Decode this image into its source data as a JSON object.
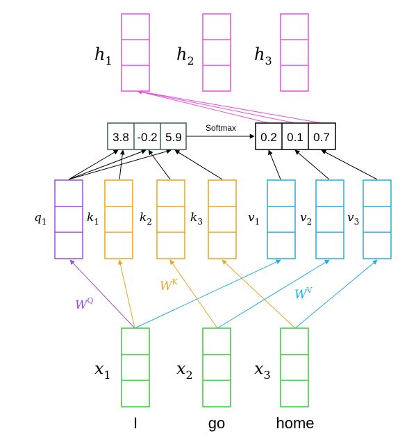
{
  "words": [
    "I",
    "go",
    "home"
  ],
  "x_labels": [
    {
      "base": "x",
      "sub": "1"
    },
    {
      "base": "x",
      "sub": "2"
    },
    {
      "base": "x",
      "sub": "3"
    }
  ],
  "h_labels": [
    {
      "base": "h",
      "sub": "1"
    },
    {
      "base": "h",
      "sub": "2"
    },
    {
      "base": "h",
      "sub": "3"
    }
  ],
  "q_labels": [
    {
      "base": "q",
      "sub": "1"
    }
  ],
  "k_labels": [
    {
      "base": "k",
      "sub": "1"
    },
    {
      "base": "k",
      "sub": "2"
    },
    {
      "base": "k",
      "sub": "3"
    }
  ],
  "v_labels": [
    {
      "base": "v",
      "sub": "1"
    },
    {
      "base": "v",
      "sub": "2"
    },
    {
      "base": "v",
      "sub": "3"
    }
  ],
  "weights": {
    "q": {
      "base": "W",
      "sup": "Q"
    },
    "k": {
      "base": "W",
      "sup": "K"
    },
    "v": {
      "base": "W",
      "sup": "V"
    }
  },
  "scores": [
    "3.8",
    "-0.2",
    "5.9"
  ],
  "softmax_label": "Softmax",
  "probs": [
    "0.2",
    "0.1",
    "0.7"
  ],
  "colors": {
    "query": "#9b4fcf",
    "key": "#e8a51e",
    "value": "#1faee6",
    "input": "#33cc33",
    "output": "#e64fe0",
    "score_box": "#3b5a63",
    "arrow": "#000000"
  }
}
